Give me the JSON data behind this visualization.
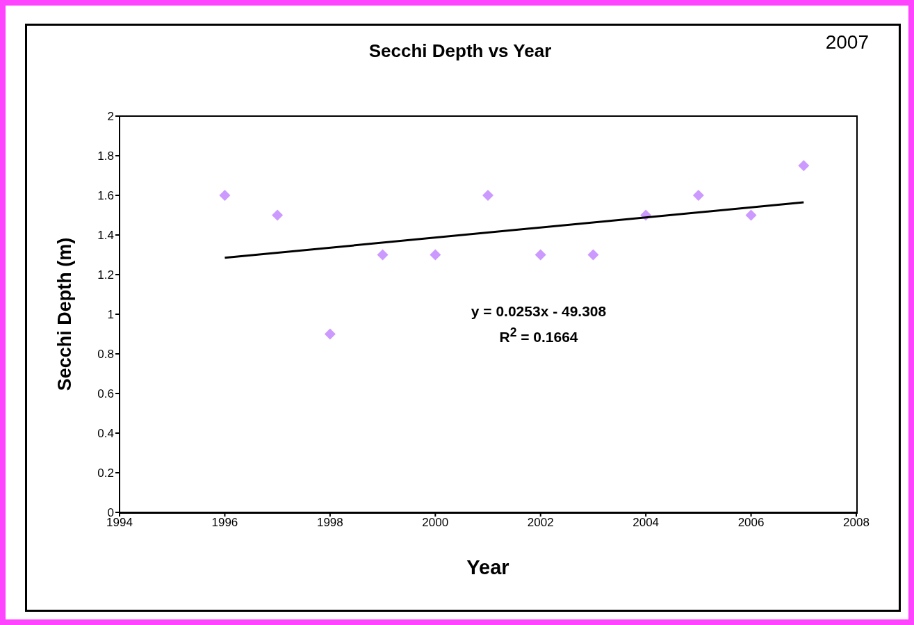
{
  "chart_data": {
    "type": "scatter",
    "title": "Secchi Depth vs Year",
    "xlabel": "Year",
    "ylabel": "Secchi Depth (m)",
    "annotations": [
      "2007",
      "y = 0.0253x - 49.308",
      "R$^{2}$ = 0.1664"
    ],
    "x": [
      1996,
      1997,
      1998,
      1999,
      2000,
      2001,
      2002,
      2003,
      2004,
      2005,
      2006,
      2007
    ],
    "series": [
      {
        "color": "#cc99ff",
        "marker": "diamond",
        "values": [
          1.6,
          1.5,
          0.9,
          1.3,
          1.3,
          1.6,
          1.3,
          1.3,
          1.5,
          1.6,
          1.5,
          1.75
        ]
      },
      {
        "type": "line",
        "color": "#000000",
        "marker": "none",
        "x": [
          1996,
          2007
        ],
        "values": [
          1.285,
          1.565
        ]
      }
    ],
    "xlim": [
      1994,
      2008
    ],
    "xticks": [
      1994,
      1996,
      1998,
      2000,
      2002,
      2004,
      2006,
      2008
    ],
    "ylim": [
      0,
      2
    ],
    "yticks": [
      0,
      0.2,
      0.4,
      0.6,
      0.8,
      1,
      1.2,
      1.4,
      1.6,
      1.8,
      2
    ],
    "grid": false
  }
}
